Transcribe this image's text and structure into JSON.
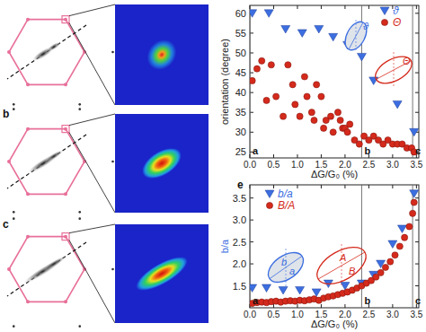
{
  "chart_data": [
    {
      "type": "scatter",
      "xlabel": "ΔG/G₀ (%)",
      "ylabel": "orientation (degree)",
      "xlim": [
        0,
        3.55
      ],
      "ylim": [
        23.5,
        62
      ],
      "xticks": [
        {
          "value": 0,
          "label": "0.0"
        },
        0.5,
        {
          "value": 1,
          "label": "1.0"
        },
        1.5,
        {
          "value": 2,
          "label": "2.0"
        },
        2.5,
        {
          "value": 3,
          "label": "3.0"
        },
        3.5
      ],
      "yticks": [
        25,
        30,
        35,
        40,
        45,
        50,
        55,
        60
      ],
      "legend": "upper right",
      "series": [
        {
          "name": "ϑ",
          "color": "#3c6ee0",
          "marker": "triangle",
          "x": [
            0.05,
            0.4,
            0.75,
            1.1,
            1.45,
            1.75,
            2.05,
            2.35,
            2.6,
            3.1,
            3.45
          ],
          "values": [
            60,
            60,
            56,
            55,
            56,
            54,
            52,
            49,
            43,
            37,
            30
          ]
        },
        {
          "name": "Θ",
          "color": "#d42a1c",
          "marker": "circle",
          "x": [
            0.05,
            0.15,
            0.25,
            0.35,
            0.45,
            0.55,
            0.7,
            0.8,
            0.9,
            0.95,
            1.05,
            1.15,
            1.2,
            1.3,
            1.35,
            1.4,
            1.5,
            1.55,
            1.6,
            1.7,
            1.75,
            1.85,
            1.9,
            1.95,
            2.0,
            2.05,
            2.1,
            2.2,
            2.3,
            2.4,
            2.5,
            2.6,
            2.7,
            2.8,
            2.9,
            3.0,
            3.1,
            3.2,
            3.3,
            3.4,
            3.45
          ],
          "values": [
            43,
            46,
            48,
            38,
            47,
            39,
            34,
            47,
            42,
            37,
            34,
            44,
            39,
            35,
            33,
            42,
            39,
            31,
            33,
            34,
            30,
            35,
            33,
            31,
            31,
            30,
            32,
            28,
            27,
            29,
            28,
            29,
            28,
            27,
            28,
            27,
            27,
            27,
            26,
            26,
            25
          ]
        }
      ],
      "annotations": [
        {
          "x": 0,
          "text": "a"
        },
        {
          "x": 2.35,
          "text": "b"
        },
        {
          "x": 3.42,
          "text": "c"
        }
      ],
      "insets": [
        {
          "color": "#3c6ee0",
          "labels": [
            "ϑ"
          ]
        },
        {
          "color": "#d42a1c",
          "labels": [
            "Θ"
          ]
        }
      ]
    },
    {
      "type": "scatter",
      "title": "e",
      "xlabel": "ΔG/G₀ (%)",
      "ylabel": "b/a",
      "xlim": [
        0,
        3.55
      ],
      "ylim": [
        1.0,
        3.8
      ],
      "xticks": [
        {
          "value": 0,
          "label": "0.0"
        },
        0.5,
        {
          "value": 1,
          "label": "1.0"
        },
        1.5,
        {
          "value": 2,
          "label": "2.0"
        },
        2.5,
        {
          "value": 3,
          "label": "3.0"
        },
        3.5
      ],
      "yticks": [
        1.5,
        {
          "value": 2,
          "label": "2.0"
        },
        2.5,
        {
          "value": 3,
          "label": "3.0"
        },
        3.5
      ],
      "legend": "upper left",
      "series": [
        {
          "name": "b/a",
          "color": "#3c6ee0",
          "marker": "triangle",
          "x": [
            0.05,
            0.35,
            0.7,
            1.05,
            1.4,
            1.65,
            2.0,
            2.35,
            2.6,
            2.75,
            3.0,
            3.2,
            3.45
          ],
          "values": [
            1.45,
            1.45,
            1.4,
            1.4,
            1.35,
            1.55,
            1.5,
            1.55,
            1.75,
            2.0,
            2.45,
            2.8,
            3.6
          ]
        },
        {
          "name": "B/A",
          "color": "#d42a1c",
          "marker": "circle",
          "x": [
            0.05,
            0.15,
            0.25,
            0.35,
            0.45,
            0.55,
            0.65,
            0.75,
            0.85,
            0.95,
            1.05,
            1.15,
            1.25,
            1.35,
            1.45,
            1.55,
            1.65,
            1.75,
            1.85,
            1.95,
            2.05,
            2.15,
            2.25,
            2.35,
            2.45,
            2.55,
            2.65,
            2.75,
            2.85,
            2.95,
            3.05,
            3.15,
            3.25,
            3.35,
            3.42,
            3.45
          ],
          "values": [
            1.1,
            1.12,
            1.13,
            1.12,
            1.14,
            1.15,
            1.13,
            1.15,
            1.16,
            1.15,
            1.17,
            1.16,
            1.18,
            1.2,
            1.17,
            1.22,
            1.25,
            1.27,
            1.3,
            1.33,
            1.36,
            1.4,
            1.45,
            1.5,
            1.56,
            1.62,
            1.7,
            1.8,
            1.92,
            2.05,
            2.2,
            2.4,
            2.6,
            2.85,
            3.15,
            3.4
          ]
        }
      ],
      "annotations": [
        {
          "x": 0,
          "text": "a"
        },
        {
          "x": 2.35,
          "text": "b"
        },
        {
          "x": 3.42,
          "text": "c"
        }
      ],
      "insets": [
        {
          "color": "#3c6ee0",
          "labels": [
            "b",
            "a"
          ]
        },
        {
          "color": "#d42a1c",
          "labels": [
            "A",
            "B"
          ]
        }
      ]
    }
  ],
  "panels": {
    "labels": [
      "b",
      "c"
    ]
  }
}
